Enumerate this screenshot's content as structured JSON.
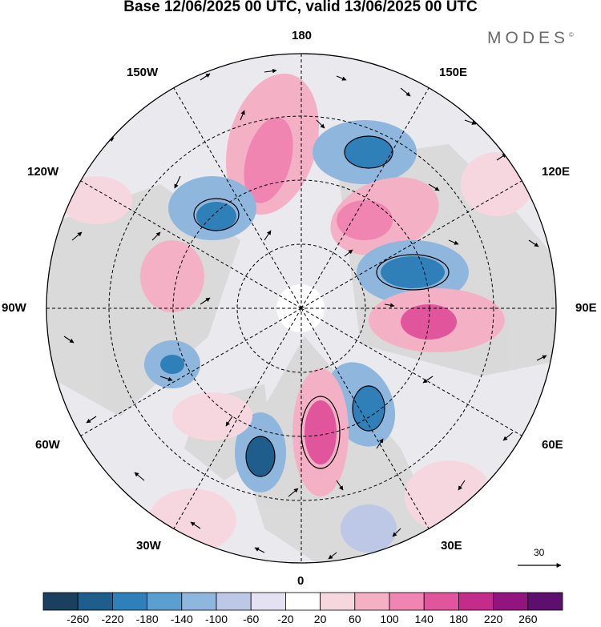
{
  "title": "Base 12/06/2025 00 UTC, valid 13/06/2025 00 UTC",
  "brand": {
    "name": "MODES",
    "mark": "©"
  },
  "longitude_labels": {
    "lon_180": "180",
    "lon_150E": "150E",
    "lon_120E": "120E",
    "lon_90E": "90E",
    "lon_60E": "60E",
    "lon_30E": "30E",
    "lon_0": "0",
    "lon_30W": "30W",
    "lon_60W": "60W",
    "lon_90W": "90W",
    "lon_120W": "120W",
    "lon_150W": "150W"
  },
  "reference_vector": {
    "label": "30"
  },
  "colorbar": {
    "labels": [
      "-260",
      "-220",
      "-180",
      "-140",
      "-100",
      "-60",
      "-20",
      "20",
      "60",
      "100",
      "140",
      "180",
      "220",
      "260"
    ],
    "colors": [
      "#1b3f5e",
      "#1f5e8c",
      "#2f7fb8",
      "#5a9fcf",
      "#8fb7dd",
      "#bcc8e6",
      "#e4e2f2",
      "#ffffff",
      "#f7d7df",
      "#f4b1c6",
      "#ef85b0",
      "#e0559c",
      "#c42c8c",
      "#92157f",
      "#5e0f6e"
    ]
  },
  "colors": {
    "land_grey": "#d8d8d8",
    "background": "#ffffff"
  }
}
